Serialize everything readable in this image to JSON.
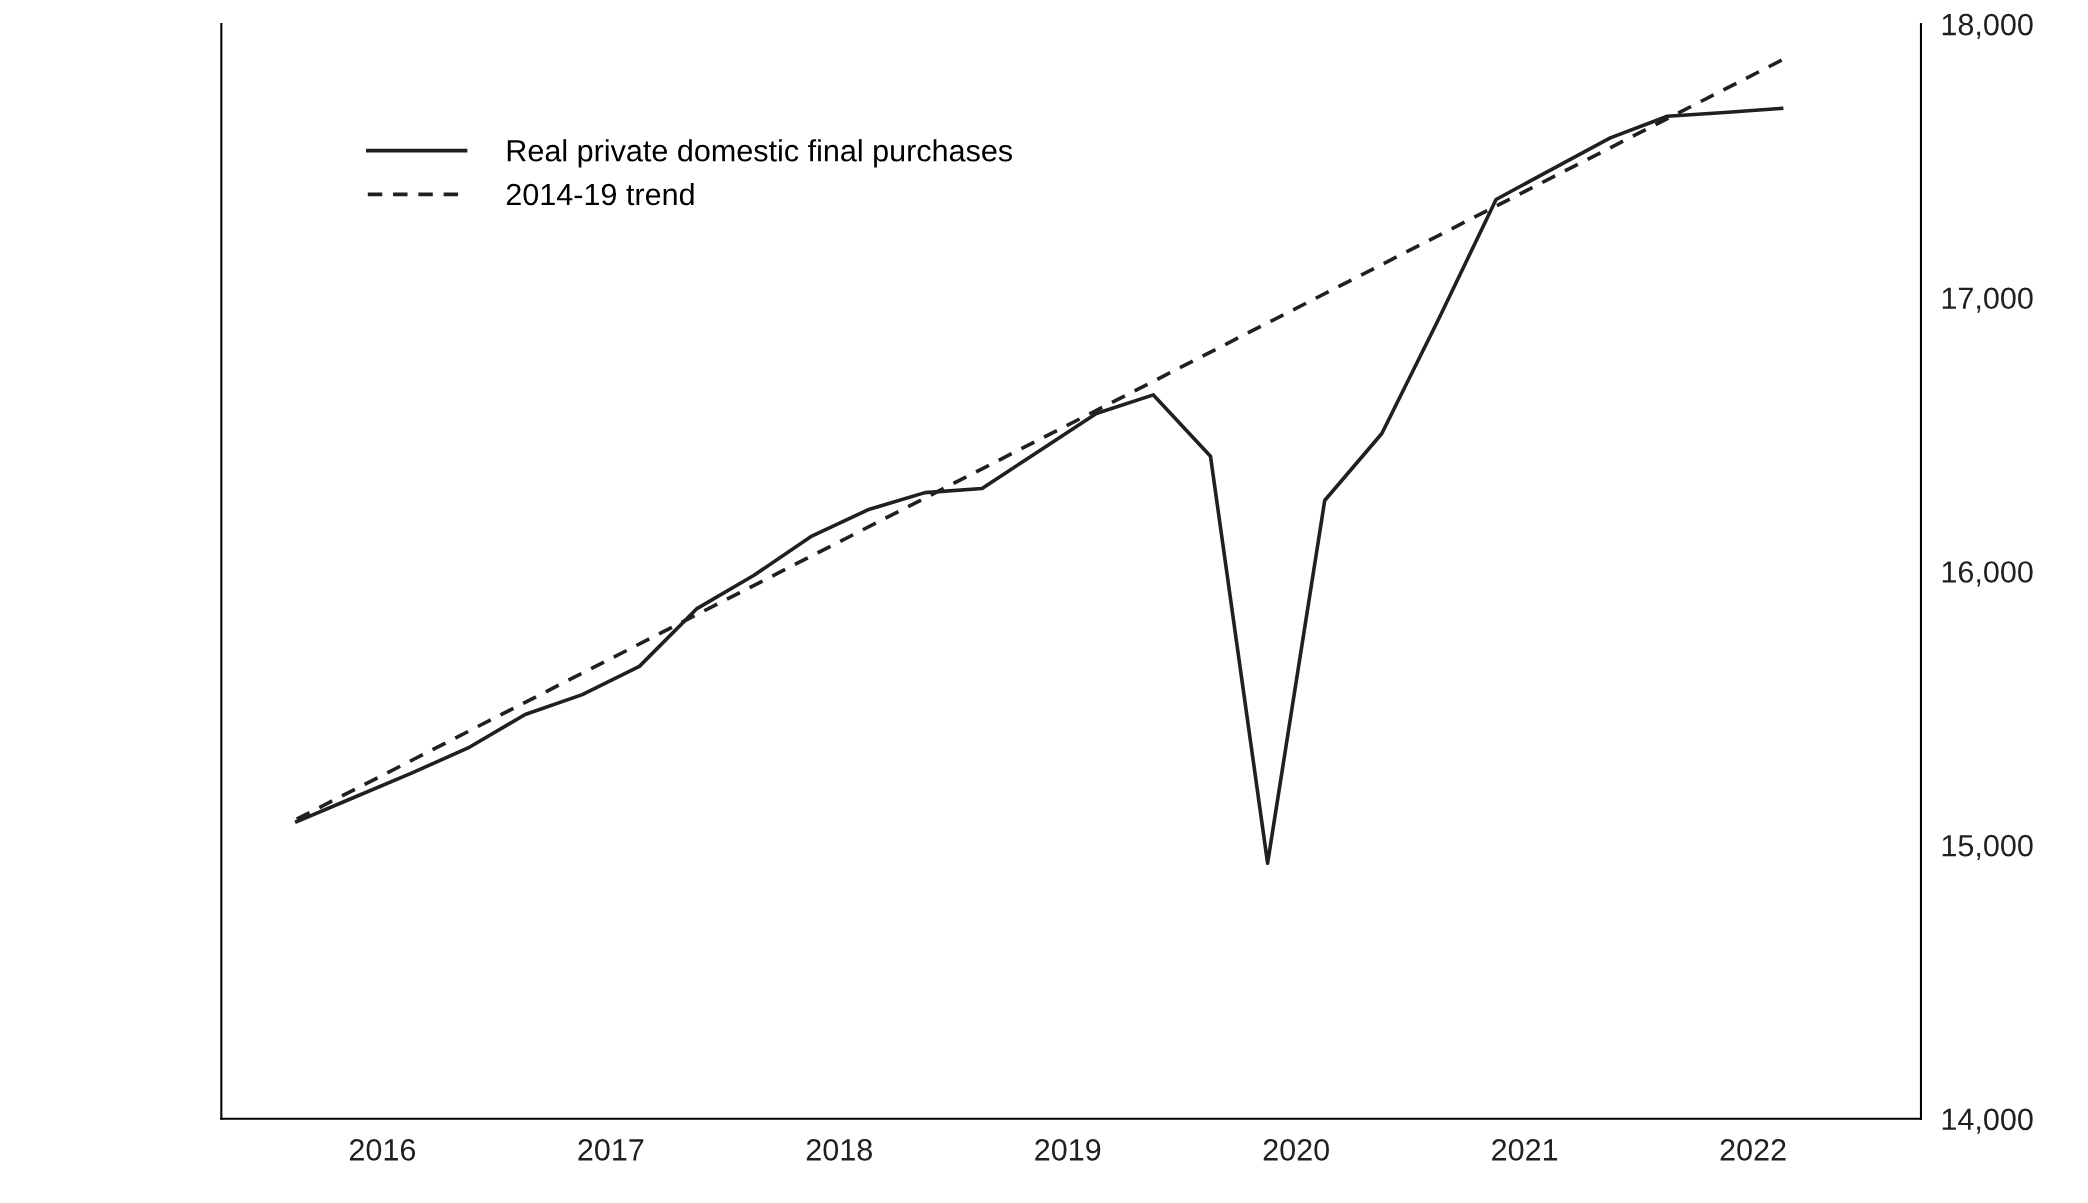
{
  "chart_data": {
    "type": "line",
    "legend": "top left",
    "grid": false,
    "xlim": [
      2015.67,
      2023.11
    ],
    "ylim": [
      14000,
      18000
    ],
    "xticks": [
      {
        "value": 2016.375,
        "label": "2016"
      },
      {
        "value": 2017.375,
        "label": "2017"
      },
      {
        "value": 2018.375,
        "label": "2018"
      },
      {
        "value": 2019.375,
        "label": "2019"
      },
      {
        "value": 2020.375,
        "label": "2020"
      },
      {
        "value": 2021.375,
        "label": "2021"
      },
      {
        "value": 2022.375,
        "label": "2022"
      }
    ],
    "yticks": [
      {
        "value": 14000,
        "label": "14,000"
      },
      {
        "value": 15000,
        "label": "15,000"
      },
      {
        "value": 16000,
        "label": "16,000"
      },
      {
        "value": 17000,
        "label": "17,000"
      },
      {
        "value": 18000,
        "label": "18,000"
      }
    ],
    "series": [
      {
        "name": "Real private domestic final purchases",
        "color": "#231f20",
        "line_style": "solid",
        "x": [
          2016,
          2016.25,
          2016.5,
          2016.75,
          2017,
          2017.25,
          2017.5,
          2017.75,
          2018,
          2018.25,
          2018.5,
          2018.75,
          2019,
          2019.25,
          2019.5,
          2019.75,
          2020,
          2020.25,
          2020.5,
          2020.75,
          2021,
          2021.25,
          2021.5,
          2021.75,
          2022,
          2022.25,
          2022.5
        ],
        "values": [
          15086,
          15174,
          15262,
          15355,
          15477,
          15550,
          15653,
          15863,
          15985,
          16127,
          16225,
          16288,
          16303,
          16440,
          16577,
          16645,
          16421,
          14934,
          16259,
          16504,
          16924,
          17359,
          17472,
          17584,
          17663,
          17677,
          17692
        ]
      },
      {
        "name": "2014-19 trend",
        "color": "#231f20",
        "line_style": "dashed",
        "x": [
          2016,
          2022.5
        ],
        "values": [
          15095,
          17868
        ]
      }
    ]
  }
}
